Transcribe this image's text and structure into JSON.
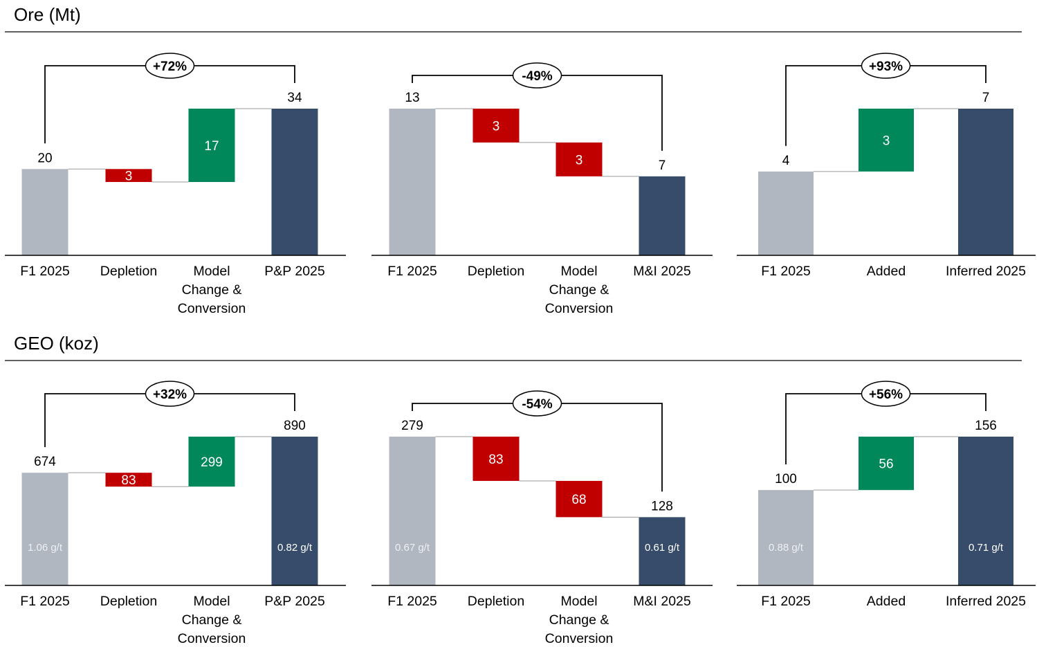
{
  "sections": [
    {
      "title": "Ore (Mt)"
    },
    {
      "title": "GEO (koz)"
    }
  ],
  "colors": {
    "start_total": "#b0b7c1",
    "decrease": "#c00000",
    "increase": "#00875a",
    "end_total": "#374c6b",
    "axis": "#000000",
    "connector": "#9a9a9a"
  },
  "chart_data": [
    {
      "type": "bar",
      "subtype": "waterfall",
      "section": 0,
      "categories": [
        [
          "F1 2025"
        ],
        [
          "Depletion"
        ],
        [
          "Model",
          "Change &",
          "Conversion"
        ],
        [
          "P&P 2025"
        ]
      ],
      "kinds": [
        "start_total",
        "decrease",
        "increase",
        "end_total"
      ],
      "values": [
        20,
        3,
        17,
        34
      ],
      "labels": [
        "20",
        "3",
        "17",
        "34"
      ],
      "change_label": "+72%",
      "grades": [
        "",
        "",
        "",
        ""
      ]
    },
    {
      "type": "bar",
      "subtype": "waterfall",
      "section": 0,
      "categories": [
        [
          "F1 2025"
        ],
        [
          "Depletion"
        ],
        [
          "Model",
          "Change &",
          "Conversion"
        ],
        [
          "M&I 2025"
        ]
      ],
      "kinds": [
        "start_total",
        "decrease",
        "decrease",
        "end_total"
      ],
      "values": [
        13,
        3,
        3,
        7
      ],
      "labels": [
        "13",
        "3",
        "3",
        "7"
      ],
      "change_label": "-49%",
      "grades": [
        "",
        "",
        "",
        ""
      ]
    },
    {
      "type": "bar",
      "subtype": "waterfall",
      "section": 0,
      "categories": [
        [
          "F1 2025"
        ],
        [
          "Added"
        ],
        [
          "Inferred 2025"
        ]
      ],
      "kinds": [
        "start_total",
        "increase",
        "end_total"
      ],
      "values": [
        4,
        3,
        7
      ],
      "labels": [
        "4",
        "3",
        "7"
      ],
      "change_label": "+93%",
      "grades": [
        "",
        "",
        ""
      ]
    },
    {
      "type": "bar",
      "subtype": "waterfall",
      "section": 1,
      "categories": [
        [
          "F1 2025"
        ],
        [
          "Depletion"
        ],
        [
          "Model",
          "Change &",
          "Conversion"
        ],
        [
          "P&P 2025"
        ]
      ],
      "kinds": [
        "start_total",
        "decrease",
        "increase",
        "end_total"
      ],
      "values": [
        674,
        83,
        299,
        890
      ],
      "labels": [
        "674",
        "83",
        "299",
        "890"
      ],
      "change_label": "+32%",
      "grades": [
        "1.06 g/t",
        "",
        "",
        "0.82 g/t"
      ]
    },
    {
      "type": "bar",
      "subtype": "waterfall",
      "section": 1,
      "categories": [
        [
          "F1 2025"
        ],
        [
          "Depletion"
        ],
        [
          "Model",
          "Change &",
          "Conversion"
        ],
        [
          "M&I 2025"
        ]
      ],
      "kinds": [
        "start_total",
        "decrease",
        "decrease",
        "end_total"
      ],
      "values": [
        279,
        83,
        68,
        128
      ],
      "labels": [
        "279",
        "83",
        "68",
        "128"
      ],
      "change_label": "-54%",
      "grades": [
        "0.67 g/t",
        "",
        "",
        "0.61 g/t"
      ]
    },
    {
      "type": "bar",
      "subtype": "waterfall",
      "section": 1,
      "categories": [
        [
          "F1 2025"
        ],
        [
          "Added"
        ],
        [
          "Inferred 2025"
        ]
      ],
      "kinds": [
        "start_total",
        "increase",
        "end_total"
      ],
      "values": [
        100,
        56,
        156
      ],
      "labels": [
        "100",
        "56",
        "156"
      ],
      "change_label": "+56%",
      "grades": [
        "0.88 g/t",
        "",
        "0.71 g/t"
      ]
    }
  ]
}
